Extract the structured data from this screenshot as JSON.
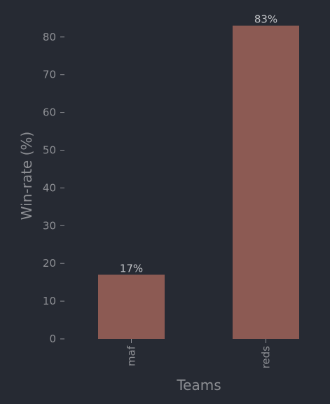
{
  "chart_data": {
    "type": "bar",
    "categories": [
      "maf",
      "reds"
    ],
    "values": [
      17,
      83
    ],
    "data_labels": [
      "17%",
      "83%"
    ],
    "xlabel": "Teams",
    "ylabel": "Win-rate (%)",
    "ylim": [
      0,
      83
    ],
    "yticks": [
      0,
      10,
      20,
      30,
      40,
      50,
      60,
      70,
      80
    ],
    "x_tick_rotation": "vertical",
    "grid": false,
    "legend": "none",
    "bar_color": "#8c5a53",
    "background_color": "#262a33",
    "text_color": "#8d8f94"
  }
}
